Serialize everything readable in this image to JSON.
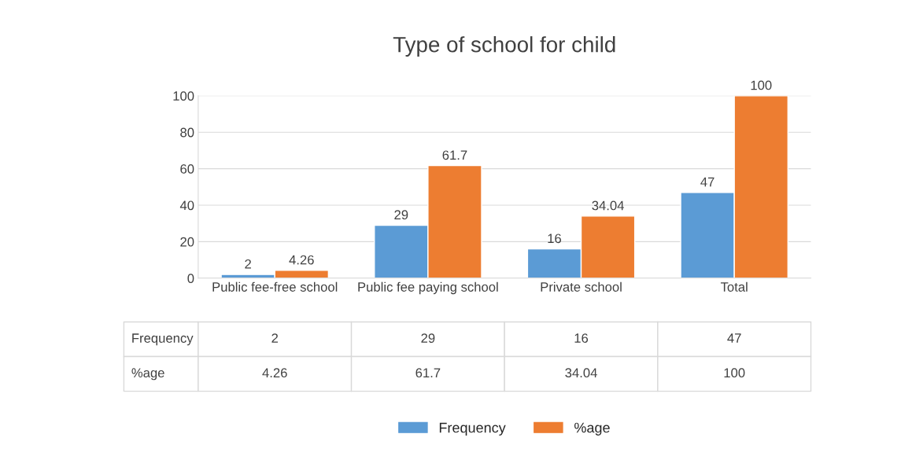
{
  "chart_data": {
    "type": "bar",
    "title": "Type of school for child",
    "categories": [
      "Public fee-free school",
      "Public fee paying school",
      "Private school",
      "Total"
    ],
    "series": [
      {
        "name": "Frequency",
        "color": "#5b9bd5",
        "values": [
          2,
          29,
          16,
          47
        ]
      },
      {
        "name": "%age",
        "color": "#ed7d31",
        "values": [
          4.26,
          61.7,
          34.04,
          100
        ]
      }
    ],
    "ylim": [
      0,
      100
    ],
    "yticks": [
      0,
      20,
      40,
      60,
      80,
      100
    ],
    "grid": "y",
    "legend": "bottom",
    "data_labels": true,
    "annotations": [
      "2",
      "29",
      "16",
      "47",
      "4.26",
      "61.7",
      "34.04",
      "100"
    ]
  }
}
